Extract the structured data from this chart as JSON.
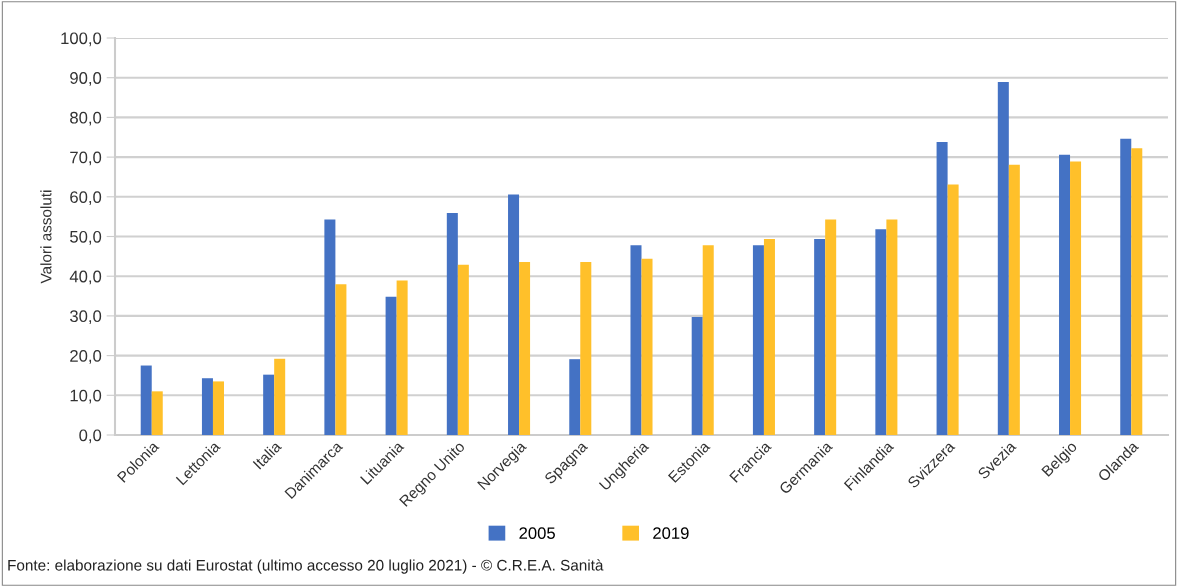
{
  "chart_data": {
    "type": "bar",
    "ylabel": "Valori assoluti",
    "categories": [
      "Polonia",
      "Lettonia",
      "Italia",
      "Danimarca",
      "Lituania",
      "Regno Unito",
      "Norvegia",
      "Spagna",
      "Ungheria",
      "Estonia",
      "Francia",
      "Germania",
      "Finlandia",
      "Svizzera",
      "Svezia",
      "Belgio",
      "Olanda"
    ],
    "series": [
      {
        "name": "2005",
        "color": "#4472c4",
        "values": [
          17.5,
          14.3,
          15.2,
          54.3,
          34.8,
          55.9,
          60.6,
          19.1,
          47.8,
          29.7,
          47.8,
          49.4,
          51.8,
          73.8,
          88.9,
          70.6,
          74.6
        ]
      },
      {
        "name": "2019",
        "color": "#ffc02a",
        "values": [
          11.0,
          13.5,
          19.2,
          38.0,
          38.9,
          42.9,
          43.6,
          43.6,
          44.4,
          47.8,
          49.4,
          54.3,
          54.3,
          63.1,
          68.1,
          68.9,
          72.2
        ]
      }
    ],
    "ylim": [
      0,
      100
    ],
    "yticks": [
      {
        "value": 0,
        "label": "0,0"
      },
      {
        "value": 10,
        "label": "10,0"
      },
      {
        "value": 20,
        "label": "20,0"
      },
      {
        "value": 30,
        "label": "30,0"
      },
      {
        "value": 40,
        "label": "40,0"
      },
      {
        "value": 50,
        "label": "50,0"
      },
      {
        "value": 60,
        "label": "60,0"
      },
      {
        "value": 70,
        "label": "70,0"
      },
      {
        "value": 80,
        "label": "80,0"
      },
      {
        "value": 90,
        "label": "90,0"
      },
      {
        "value": 100,
        "label": "100,0"
      }
    ],
    "grid": "y",
    "legend": "bottom",
    "annotations": [
      "Fonte: elaborazione su dati Eurostat (ultimo accesso 20 luglio 2021) - © C.R.E.A. Sanità"
    ]
  }
}
